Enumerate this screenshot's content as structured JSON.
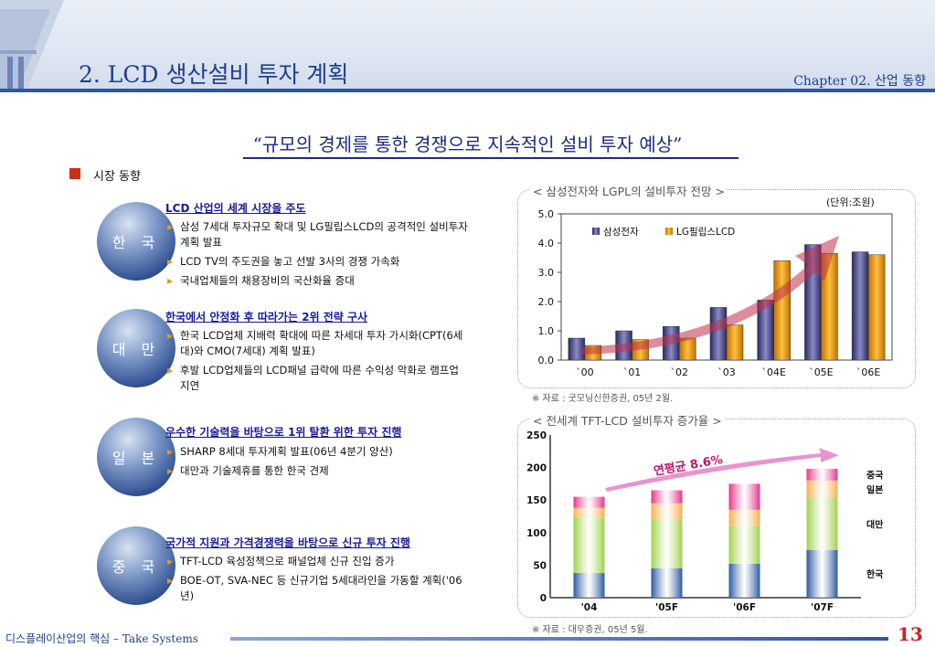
{
  "header": {
    "title": "2. LCD 생산설비 투자 계획",
    "chapter": "Chapter 02. 산업 동향"
  },
  "quote": "“규모의 경제를 통한 경쟁으로 지속적인 설비 투자 예상”",
  "section_title": "시장 동향",
  "regions": [
    {
      "name": "한 국",
      "heading": "LCD 산업의 세계 시장을 주도",
      "bullets": [
        "삼성 7세대 투자규모 확대 및 LG필립스LCD의 공격적인 설비투자 계획 발표",
        "LCD TV의 주도권을 놓고 선발 3사의 경쟁 가속화",
        "국내업체들의 채용장비의 국산화율 증대"
      ]
    },
    {
      "name": "대 만",
      "heading": "한국에서 안정화 후 따라가는 2위 전략 구사",
      "bullets": [
        "한국 LCD업체 지배력 확대에 따른 차세대 투자 가시화(CPT(6세대)와 CMO(7세대) 계획 발표)",
        "후발 LCD업체들의 LCD패널 급락에 따른 수익성 악화로 램프업 지연"
      ]
    },
    {
      "name": "일 본",
      "heading": "우수한 기술력을 바탕으로 1위 탈환 위한 투자 진행",
      "bullets": [
        "SHARP 8세대 투자계획 발표(06년 4분기 양산)",
        "대만과 기술제휴를 통한 한국 견제"
      ]
    },
    {
      "name": "중 국",
      "heading": "국가적 지원과 가격경쟁력을 바탕으로 신규 투자 진행",
      "bullets": [
        "TFT-LCD 육성정책으로 패널업체 신규 진입 증가",
        "BOE-OT, SVA-NEC 등 신규기업 5세대라인을 가동할 계획('06년)"
      ]
    }
  ],
  "chart_data": [
    {
      "type": "bar",
      "title": "< 삼성전자와 LGPL의 설비투자 전망 >",
      "unit": "(단위:조원)",
      "categories": [
        "`00",
        "`01",
        "`02",
        "`03",
        "`04E",
        "`05E",
        "`06E"
      ],
      "series": [
        {
          "name": "삼성전자",
          "values": [
            0.75,
            1.0,
            1.15,
            1.8,
            2.05,
            3.95,
            3.7
          ],
          "color": "#4a4a88"
        },
        {
          "name": "LG필립스LCD",
          "values": [
            0.5,
            0.7,
            0.75,
            1.2,
            3.4,
            3.65,
            3.6
          ],
          "color": "#f0a020"
        }
      ],
      "yticks": [
        "0.0",
        "1.0",
        "2.0",
        "3.0",
        "4.0",
        "5.0"
      ],
      "ylim": [
        0,
        5
      ],
      "legend": "top-left",
      "source": "※ 자료 : 굿모닝신한증권, 05년 2월."
    },
    {
      "type": "bar",
      "stacked": true,
      "title": "< 전세계 TFT-LCD 설비투자 증가율 >",
      "categories": [
        "'04",
        "'05F",
        "'06F",
        "'07F"
      ],
      "series": [
        {
          "name": "한국",
          "values": [
            38,
            45,
            52,
            73
          ],
          "color": "#2d5aa0"
        },
        {
          "name": "대만",
          "values": [
            85,
            75,
            58,
            80
          ],
          "color": "#9ed24a"
        },
        {
          "name": "일본",
          "values": [
            15,
            25,
            25,
            27
          ],
          "color": "#f8b050"
        },
        {
          "name": "중국",
          "values": [
            17,
            20,
            40,
            18
          ],
          "color": "#e8348c"
        }
      ],
      "yticks": [
        "0",
        "50",
        "100",
        "150",
        "200",
        "250"
      ],
      "ylim": [
        0,
        250
      ],
      "annotation": "연평균 8.6%",
      "legend": "right",
      "source": "※ 자료 : 대우증권, 05년 5월."
    }
  ],
  "footer": {
    "text": "디스플레이산업의 핵심 – Take Systems",
    "page": "13"
  }
}
